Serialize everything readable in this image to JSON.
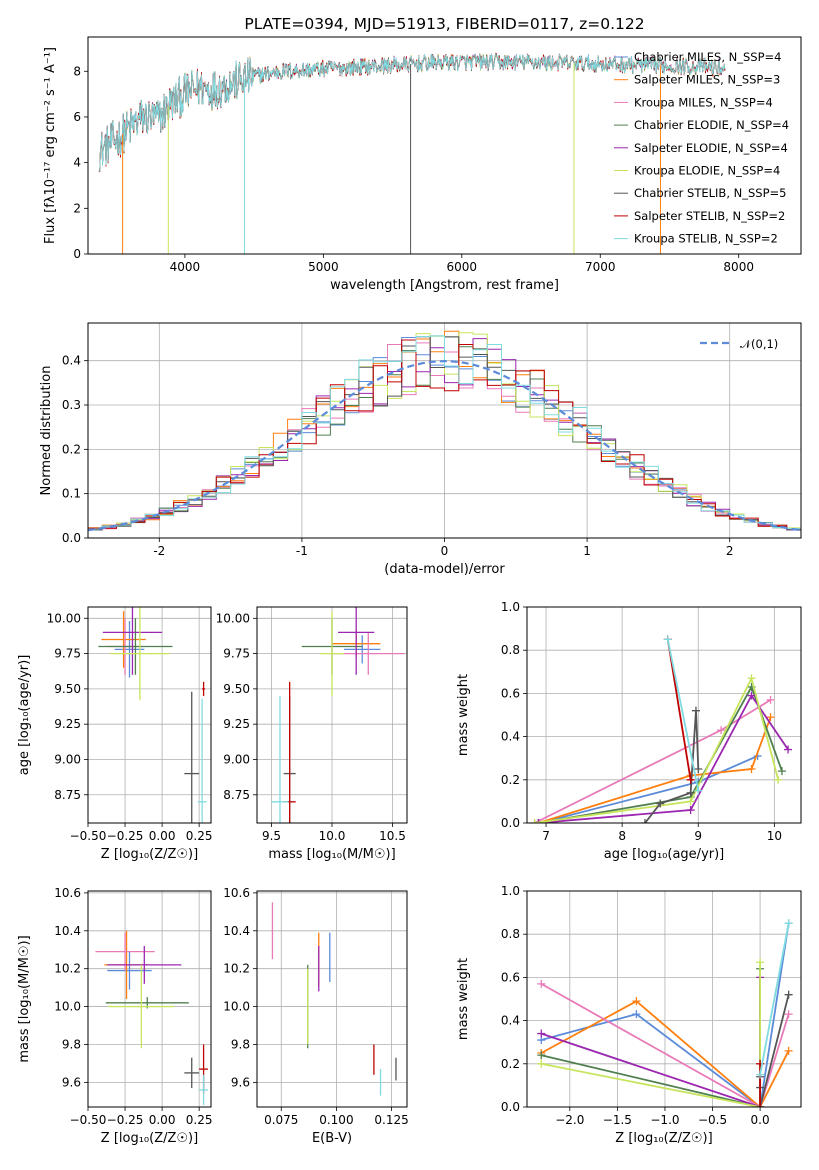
{
  "colors": {
    "chabrier_miles": "#5b8bd9",
    "salpeter_miles": "#ff7f0e",
    "kroupa_miles": "#e87ab8",
    "chabrier_elodie": "#4f7f4f",
    "salpeter_elodie": "#9b27b0",
    "kroupa_elodie": "#c7e55c",
    "chabrier_stelib": "#555555",
    "salpeter_stelib": "#c00000",
    "kroupa_stelib": "#7fdbe0"
  },
  "chart_data": [
    {
      "type": "line",
      "title": "PLATE=0394, MJD=51913, FIBERID=0117, z=0.122",
      "xlabel": "wavelength [Angstrom, rest frame]",
      "ylabel": "Flux [fλ10⁻¹⁷ erg cm⁻² s⁻¹ A⁻¹]",
      "xlim": [
        3300,
        8450
      ],
      "ylim": [
        0,
        9.5
      ],
      "xticks": [
        4000,
        5000,
        6000,
        7000,
        8000
      ],
      "yticks": [
        0,
        2,
        4,
        6,
        8
      ],
      "grid": false,
      "legend": "upper-right",
      "legend_entries": [
        "Chabrier MILES, N_SSP=4",
        "Salpeter MILES, N_SSP=3",
        "Kroupa MILES, N_SSP=4",
        "Chabrier ELODIE, N_SSP=4",
        "Salpeter ELODIE, N_SSP=4",
        "Kroupa ELODIE, N_SSP=4",
        "Chabrier STELIB, N_SSP=5",
        "Salpeter STELIB, N_SSP=2",
        "Kroupa STELIB, N_SSP=2"
      ],
      "continuum": {
        "x": [
          3380,
          3500,
          3600,
          3700,
          3800,
          3900,
          3950,
          4000,
          4100,
          4200,
          4300,
          4500,
          4700,
          5000,
          5300,
          5600,
          5900,
          6200,
          6500,
          6800,
          7100,
          7400,
          7700,
          7900
        ],
        "y": [
          4.5,
          5.0,
          5.5,
          6.0,
          5.9,
          6.6,
          6.8,
          7.0,
          7.3,
          7.2,
          7.4,
          7.8,
          8.0,
          8.1,
          8.2,
          8.3,
          8.4,
          8.4,
          8.4,
          8.35,
          8.3,
          8.25,
          8.2,
          8.15
        ]
      },
      "spikes": [
        {
          "x": 3550,
          "y": 0
        },
        {
          "x": 3880,
          "y": 0
        },
        {
          "x": 4430,
          "y": 0
        },
        {
          "x": 5630,
          "y": 0
        },
        {
          "x": 6810,
          "y": 0
        },
        {
          "x": 7435,
          "y": 0
        }
      ]
    },
    {
      "type": "step",
      "xlabel": "(data-model)/error",
      "ylabel": "Normed distribution",
      "xlim": [
        -2.5,
        2.5
      ],
      "ylim": [
        0,
        0.485
      ],
      "xticks": [
        -2,
        -1,
        0,
        1,
        2
      ],
      "yticks": [
        0.0,
        0.1,
        0.2,
        0.3,
        0.4
      ],
      "grid": true,
      "legend": "upper-right",
      "legend_entries": [
        "𝒩(0,1)"
      ],
      "gaussian": {
        "mu": 0,
        "sigma": 1
      },
      "bins": {
        "start": -2.5,
        "width": 0.1,
        "count": 50
      },
      "hist_amp": 0.4
    },
    {
      "type": "scatter",
      "xlabel": "Z [log₁₀(Z/Z☉)]",
      "ylabel": "age  [log₁₀(age/yr)]",
      "xlim": [
        -0.5,
        0.33
      ],
      "ylim": [
        8.55,
        10.08
      ],
      "xticks": [
        -0.5,
        -0.25,
        0.0,
        0.25
      ],
      "xticklabels": [
        "−0.50",
        "−0.25",
        "0.00",
        "0.25"
      ],
      "yticks": [
        8.75,
        9.0,
        9.25,
        9.5,
        9.75,
        10.0
      ],
      "grid": true,
      "errorbars": [
        {
          "key": "chabrier_miles",
          "x": -0.22,
          "xerr": 0.1,
          "y": 9.78,
          "yerr": 0.2
        },
        {
          "key": "salpeter_miles",
          "x": -0.26,
          "xerr": 0.15,
          "y": 9.85,
          "yerr": 0.2
        },
        {
          "key": "kroupa_miles",
          "x": -0.25,
          "xerr": 0.12,
          "y": 9.8,
          "yerr": 0.2
        },
        {
          "key": "chabrier_elodie",
          "x": -0.18,
          "xerr": 0.25,
          "y": 9.8,
          "yerr": 0.2
        },
        {
          "key": "salpeter_elodie",
          "x": -0.2,
          "xerr": 0.2,
          "y": 9.9,
          "yerr": 0.3
        },
        {
          "key": "kroupa_elodie",
          "x": -0.15,
          "xerr": 0.2,
          "y": 9.75,
          "yerr": 0.33
        },
        {
          "key": "chabrier_stelib",
          "x": 0.2,
          "xerr": 0.05,
          "y": 8.9,
          "yerr": 0.58
        },
        {
          "key": "salpeter_stelib",
          "x": 0.28,
          "xerr": 0.01,
          "y": 9.5,
          "yerr": 0.05
        },
        {
          "key": "kroupa_stelib",
          "x": 0.27,
          "xerr": 0.03,
          "y": 8.7,
          "yerr": 0.73
        }
      ]
    },
    {
      "type": "scatter",
      "xlabel": "mass [log₁₀(M/M☉)]",
      "ylabel": "",
      "xlim": [
        9.38,
        10.62
      ],
      "ylim": [
        8.55,
        10.08
      ],
      "xticks": [
        9.5,
        10.0,
        10.5
      ],
      "xticklabels": [
        "9.5",
        "10.0",
        "10.5"
      ],
      "yticks": [
        8.75,
        9.0,
        9.25,
        9.5,
        9.75,
        10.0
      ],
      "grid": true,
      "errorbars": [
        {
          "key": "chabrier_miles",
          "x": 10.25,
          "xerr": 0.15,
          "y": 9.78,
          "yerr": 0.1
        },
        {
          "key": "salpeter_miles",
          "x": 10.2,
          "xerr": 0.2,
          "y": 9.82,
          "yerr": 0.1
        },
        {
          "key": "kroupa_miles",
          "x": 10.3,
          "xerr": 0.3,
          "y": 9.75,
          "yerr": 0.15
        },
        {
          "key": "chabrier_elodie",
          "x": 10.0,
          "xerr": 0.25,
          "y": 9.8,
          "yerr": 0.2
        },
        {
          "key": "salpeter_elodie",
          "x": 10.2,
          "xerr": 0.15,
          "y": 9.9,
          "yerr": 0.3
        },
        {
          "key": "kroupa_elodie",
          "x": 10.0,
          "xerr": 0.1,
          "y": 9.75,
          "yerr": 0.3
        },
        {
          "key": "chabrier_stelib",
          "x": 9.65,
          "xerr": 0.05,
          "y": 8.9,
          "yerr": 0.55
        },
        {
          "key": "salpeter_stelib",
          "x": 9.65,
          "xerr": 0.05,
          "y": 8.7,
          "yerr": 0.85
        },
        {
          "key": "kroupa_stelib",
          "x": 9.57,
          "xerr": 0.07,
          "y": 8.7,
          "yerr": 0.75
        }
      ]
    },
    {
      "type": "line",
      "xlabel": "age  [log₁₀(age/yr)]",
      "ylabel": "mass weight",
      "xlim": [
        6.75,
        10.35
      ],
      "ylim": [
        0,
        1.0
      ],
      "xticks": [
        7,
        8,
        9,
        10
      ],
      "xticklabels": [
        "7",
        "8",
        "9",
        "10"
      ],
      "yticks": [
        0.0,
        0.2,
        0.4,
        0.6,
        0.8,
        1.0
      ],
      "grid": true,
      "series": [
        {
          "key": "chabrier_miles",
          "x": [
            6.92,
            9.0,
            9.78
          ],
          "y": [
            0.0,
            0.19,
            0.31
          ]
        },
        {
          "key": "salpeter_miles",
          "x": [
            6.9,
            8.9,
            9.7,
            9.95
          ],
          "y": [
            0.0,
            0.22,
            0.25,
            0.49
          ]
        },
        {
          "key": "kroupa_miles",
          "x": [
            6.85,
            9.3,
            9.95
          ],
          "y": [
            0.0,
            0.43,
            0.57
          ]
        },
        {
          "key": "chabrier_elodie",
          "x": [
            6.9,
            8.9,
            9.7,
            10.1
          ],
          "y": [
            0.0,
            0.12,
            0.63,
            0.24
          ]
        },
        {
          "key": "salpeter_elodie",
          "x": [
            6.9,
            8.9,
            9.7,
            10.18
          ],
          "y": [
            0.0,
            0.06,
            0.59,
            0.34
          ]
        },
        {
          "key": "kroupa_elodie",
          "x": [
            6.85,
            8.9,
            9.7,
            10.05
          ],
          "y": [
            0.0,
            0.1,
            0.67,
            0.2
          ]
        },
        {
          "key": "chabrier_stelib",
          "x": [
            8.3,
            8.5,
            8.9,
            8.97,
            9.0
          ],
          "y": [
            0.0,
            0.09,
            0.14,
            0.52,
            0.25
          ]
        },
        {
          "key": "salpeter_stelib",
          "x": [
            8.6,
            8.9
          ],
          "y": [
            0.85,
            0.2
          ]
        },
        {
          "key": "kroupa_stelib",
          "x": [
            8.6,
            9.0
          ],
          "y": [
            0.85,
            0.15
          ]
        }
      ]
    },
    {
      "type": "scatter",
      "xlabel": "Z [log₁₀(Z/Z☉)]",
      "ylabel": "mass [log₁₀(M/M☉)]",
      "xlim": [
        -0.5,
        0.33
      ],
      "ylim": [
        9.47,
        10.61
      ],
      "xticks": [
        -0.5,
        -0.25,
        0.0,
        0.25
      ],
      "xticklabels": [
        "−0.50",
        "−0.25",
        "0.00",
        "0.25"
      ],
      "yticks": [
        9.6,
        9.8,
        10.0,
        10.2,
        10.4,
        10.6
      ],
      "grid": true,
      "errorbars": [
        {
          "key": "chabrier_miles",
          "x": -0.22,
          "xerr": 0.15,
          "y": 10.19,
          "yerr": 0.1
        },
        {
          "key": "salpeter_miles",
          "x": -0.24,
          "xerr": 0.15,
          "y": 10.22,
          "yerr": 0.18
        },
        {
          "key": "kroupa_miles",
          "x": -0.25,
          "xerr": 0.2,
          "y": 10.29,
          "yerr": 0.1
        },
        {
          "key": "chabrier_elodie",
          "x": -0.1,
          "xerr": 0.28,
          "y": 10.02,
          "yerr": 0.03
        },
        {
          "key": "salpeter_elodie",
          "x": -0.12,
          "xerr": 0.25,
          "y": 10.22,
          "yerr": 0.1
        },
        {
          "key": "kroupa_elodie",
          "x": -0.14,
          "xerr": 0.22,
          "y": 10.0,
          "yerr": 0.22
        },
        {
          "key": "chabrier_stelib",
          "x": 0.2,
          "xerr": 0.05,
          "y": 9.65,
          "yerr": 0.08
        },
        {
          "key": "salpeter_stelib",
          "x": 0.28,
          "xerr": 0.03,
          "y": 9.67,
          "yerr": 0.13
        },
        {
          "key": "kroupa_stelib",
          "x": 0.28,
          "xerr": 0.03,
          "y": 9.56,
          "yerr": 0.08
        }
      ]
    },
    {
      "type": "scatter",
      "xlabel": "E(B-V)",
      "ylabel": "",
      "xlim": [
        0.064,
        0.132
      ],
      "ylim": [
        9.47,
        10.61
      ],
      "xticks": [
        0.075,
        0.1,
        0.125
      ],
      "xticklabels": [
        "0.075",
        "0.100",
        "0.125"
      ],
      "yticks": [
        9.6,
        9.8,
        10.0,
        10.2,
        10.4,
        10.6
      ],
      "grid": true,
      "errorbars": [
        {
          "key": "chabrier_miles",
          "x": 0.097,
          "xerr": 0,
          "y": 10.26,
          "yerr": 0.13
        },
        {
          "key": "salpeter_miles",
          "x": 0.092,
          "xerr": 0,
          "y": 10.25,
          "yerr": 0.14
        },
        {
          "key": "kroupa_miles",
          "x": 0.071,
          "xerr": 0,
          "y": 10.4,
          "yerr": 0.15
        },
        {
          "key": "chabrier_elodie",
          "x": 0.087,
          "xerr": 0,
          "y": 10.0,
          "yerr": 0.22
        },
        {
          "key": "salpeter_elodie",
          "x": 0.092,
          "xerr": 0,
          "y": 10.2,
          "yerr": 0.12
        },
        {
          "key": "kroupa_elodie",
          "x": 0.087,
          "xerr": 0,
          "y": 10.0,
          "yerr": 0.2
        },
        {
          "key": "chabrier_stelib",
          "x": 0.127,
          "xerr": 0,
          "y": 9.67,
          "yerr": 0.06
        },
        {
          "key": "salpeter_stelib",
          "x": 0.117,
          "xerr": 0,
          "y": 9.72,
          "yerr": 0.08
        },
        {
          "key": "kroupa_stelib",
          "x": 0.12,
          "xerr": 0,
          "y": 9.6,
          "yerr": 0.07
        }
      ]
    },
    {
      "type": "line",
      "xlabel": "Z [log₁₀(Z/Z☉)]",
      "ylabel": "mass weight",
      "xlim": [
        -2.45,
        0.43
      ],
      "ylim": [
        0,
        1.0
      ],
      "xticks": [
        -2.0,
        -1.5,
        -1.0,
        -0.5,
        0.0
      ],
      "xticklabels": [
        "−2.0",
        "−1.5",
        "−1.0",
        "−0.5",
        "0.0"
      ],
      "yticks": [
        0.0,
        0.2,
        0.4,
        0.6,
        0.8,
        1.0
      ],
      "grid": true,
      "series": [
        {
          "key": "chabrier_miles",
          "x": [
            -2.3,
            -1.3,
            0.0,
            0.3
          ],
          "y": [
            0.31,
            0.43,
            0.0,
            0.85
          ]
        },
        {
          "key": "salpeter_miles",
          "x": [
            -2.3,
            -1.3,
            0.0,
            0.3
          ],
          "y": [
            0.25,
            0.49,
            0.0,
            0.26
          ]
        },
        {
          "key": "kroupa_miles",
          "x": [
            -2.3,
            0.0,
            0.3
          ],
          "y": [
            0.57,
            0.0,
            0.43
          ]
        },
        {
          "key": "chabrier_elodie",
          "x": [
            -2.3,
            0.0,
            0.0
          ],
          "y": [
            0.24,
            0.0,
            0.64
          ]
        },
        {
          "key": "salpeter_elodie",
          "x": [
            -2.3,
            0.0,
            0.0
          ],
          "y": [
            0.34,
            0.0,
            0.6
          ]
        },
        {
          "key": "kroupa_elodie",
          "x": [
            -2.3,
            0.0,
            0.0
          ],
          "y": [
            0.2,
            0.0,
            0.67
          ]
        },
        {
          "key": "chabrier_stelib",
          "x": [
            0.0,
            0.0,
            0.0,
            0.3
          ],
          "y": [
            0.09,
            0.14,
            0.0,
            0.52
          ]
        },
        {
          "key": "salpeter_stelib",
          "x": [
            0.0,
            0.0
          ],
          "y": [
            0.2,
            0.0
          ]
        },
        {
          "key": "kroupa_stelib",
          "x": [
            0.0,
            0.3
          ],
          "y": [
            0.15,
            0.85
          ]
        }
      ]
    }
  ]
}
